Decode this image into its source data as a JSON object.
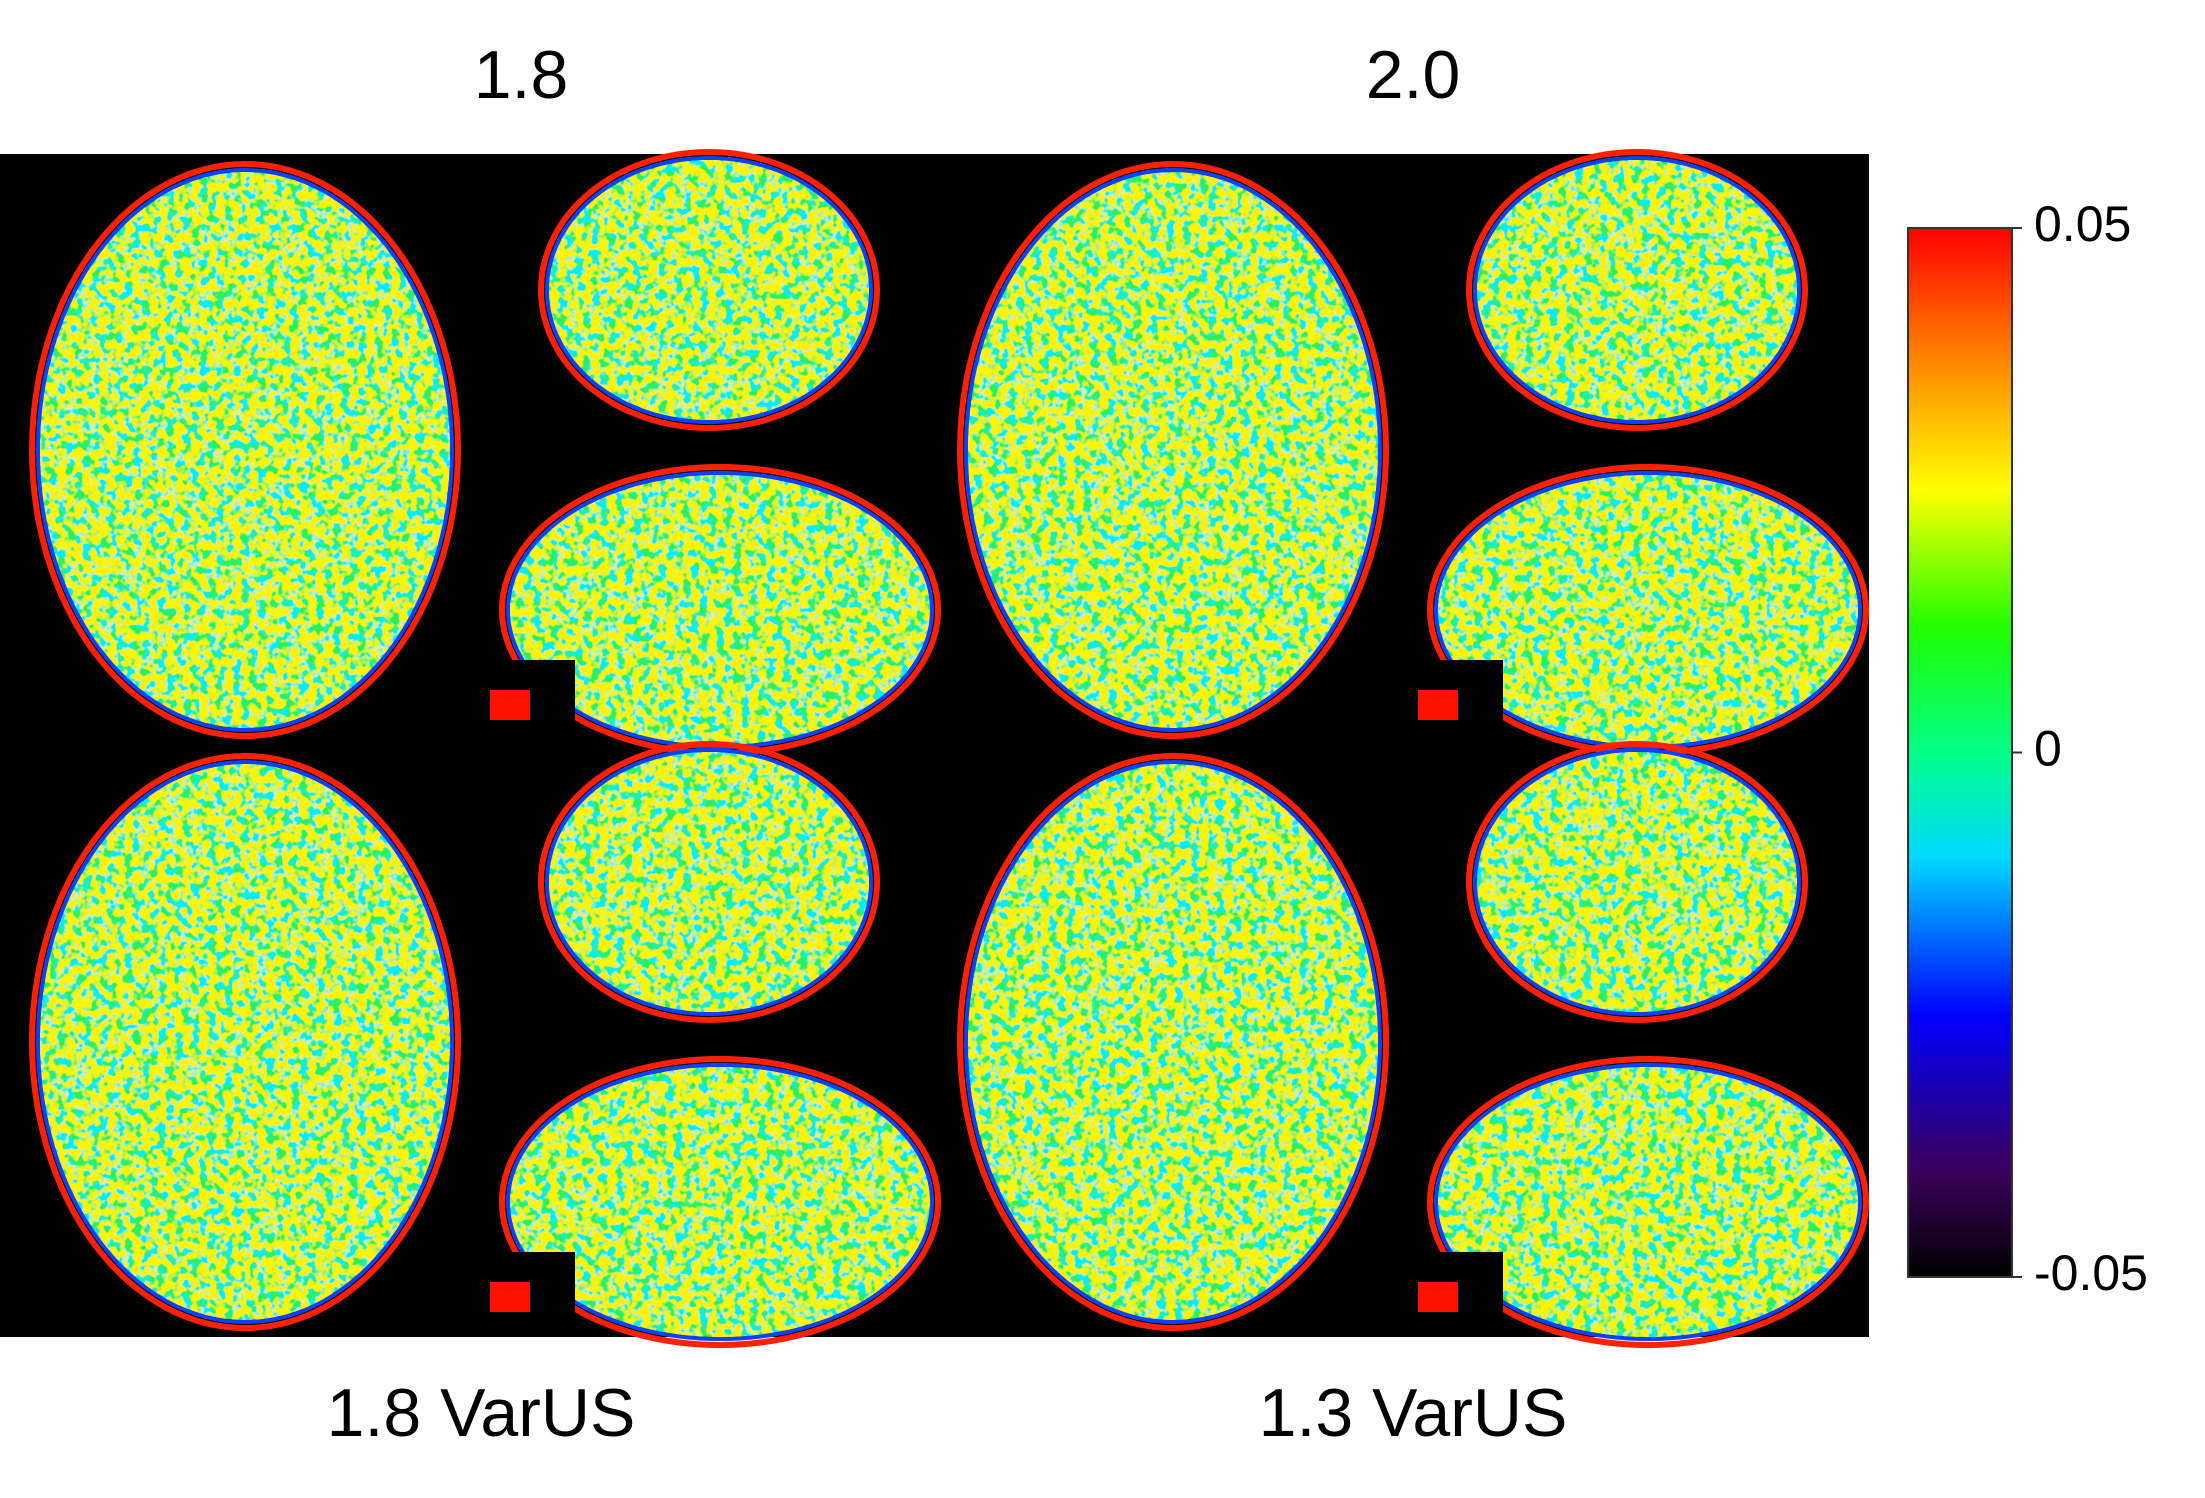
{
  "top_labels": [
    "1.8",
    "2.0"
  ],
  "bottom_labels": [
    "1.8 VarUS",
    "1.3 VarUS"
  ],
  "colorbar": {
    "range": [
      -0.05,
      0.05
    ],
    "ticks": [
      0.05,
      0,
      -0.05
    ]
  }
}
